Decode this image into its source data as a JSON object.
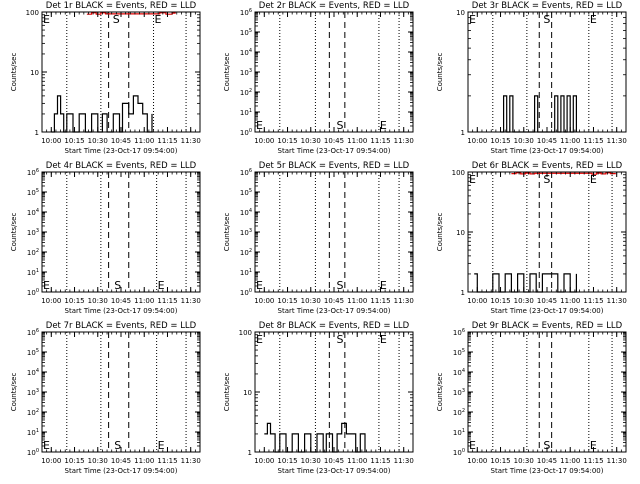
{
  "figure": {
    "x_axis_label": "Start Time (23-Oct-17 09:54:00)",
    "y_axis_label": "Counts/sec",
    "x_tick_labels": [
      "10:00",
      "10:15",
      "10:30",
      "10:45",
      "11:00",
      "11:15",
      "11:30"
    ]
  },
  "colors": {
    "events": "#000000",
    "lld": "#e00000",
    "axes": "#000000",
    "background": "#ffffff"
  },
  "chart_data": [
    {
      "type": "line",
      "title": "Det 1r BLACK = Events, RED = LLD",
      "xlabel": "Start Time (23-Oct-17 09:54:00)",
      "ylabel": "Counts/sec",
      "xlim": [
        "09:54",
        "11:36"
      ],
      "y_scale": "log",
      "ylim": [
        1,
        100
      ],
      "y_tick_labels": [
        "1",
        "10",
        "100"
      ],
      "markers": [
        {
          "label": "E",
          "time": "09:54"
        },
        {
          "label": "S",
          "time": "10:39"
        },
        {
          "label": "E",
          "time": "11:06"
        }
      ],
      "dashed_lines": [
        "10:37",
        "10:50"
      ],
      "dotted_lines": [
        "10:10",
        "10:32",
        "11:06",
        "11:27"
      ],
      "series": [
        {
          "color": "#000000",
          "x": [
            "10:00",
            "10:02",
            "10:04",
            "10:06",
            "10:08",
            "10:10",
            "10:14",
            "10:18",
            "10:22",
            "10:26",
            "10:30",
            "10:33",
            "10:36",
            "10:40",
            "10:44",
            "10:46",
            "10:50",
            "10:53",
            "10:56",
            "10:59",
            "11:02",
            "11:05"
          ],
          "y": [
            1,
            2,
            4,
            2,
            1,
            2,
            1,
            2,
            1,
            2,
            1,
            2,
            1,
            2,
            1,
            3,
            2,
            4,
            3,
            2,
            1,
            2
          ]
        },
        {
          "color": "#e00000",
          "x": [
            "10:23",
            "10:26",
            "10:29",
            "10:32",
            "10:35",
            "11:06",
            "11:10",
            "11:14",
            "11:18",
            "11:20"
          ],
          "y": [
            92,
            97,
            92,
            97,
            93,
            93,
            97,
            92,
            96,
            94
          ]
        }
      ]
    },
    {
      "type": "line",
      "title": "Det 2r BLACK = Events, RED = LLD",
      "xlabel": "Start Time (23-Oct-17 09:54:00)",
      "ylabel": "Counts/sec",
      "xlim": [
        "09:54",
        "11:36"
      ],
      "y_scale": "log",
      "ylim": [
        1,
        1000000
      ],
      "y_tick_labels": [
        "10^0",
        "10^1",
        "10^2",
        "10^3",
        "10^4",
        "10^5",
        "10^6"
      ],
      "markers": [
        {
          "label": "E",
          "time": "09:54"
        },
        {
          "label": "S",
          "time": "10:46"
        },
        {
          "label": "E",
          "time": "11:14"
        }
      ],
      "dashed_lines": [
        "10:42",
        "10:52"
      ],
      "dotted_lines": [
        "10:10",
        "10:33",
        "11:14",
        "11:27"
      ],
      "series": []
    },
    {
      "type": "line",
      "title": "Det 3r BLACK = Events, RED = LLD",
      "xlabel": "Start Time (23-Oct-17 09:54:00)",
      "ylabel": "Counts/sec",
      "xlim": [
        "09:54",
        "11:36"
      ],
      "y_scale": "log",
      "ylim": [
        1,
        10
      ],
      "y_tick_labels": [
        "1",
        "10"
      ],
      "markers": [
        {
          "label": "E",
          "time": "09:54"
        },
        {
          "label": "S",
          "time": "10:42"
        },
        {
          "label": "E",
          "time": "11:12"
        }
      ],
      "dashed_lines": [
        "10:40",
        "10:48"
      ],
      "dotted_lines": [
        "10:10",
        "10:32",
        "11:12",
        "11:27"
      ],
      "series": [
        {
          "color": "#000000",
          "x": [
            "10:15",
            "10:17",
            "10:19",
            "10:21",
            "10:23",
            "10:35",
            "10:37",
            "10:39",
            "10:50",
            "10:52",
            "10:54",
            "10:56",
            "10:58",
            "11:00",
            "11:02",
            "11:04"
          ],
          "y": [
            1,
            2,
            1,
            2,
            1,
            1,
            2,
            1,
            2,
            1,
            2,
            1,
            2,
            1,
            2,
            1
          ]
        }
      ]
    },
    {
      "type": "line",
      "title": "Det 4r BLACK = Events, RED = LLD",
      "xlabel": "Start Time (23-Oct-17 09:54:00)",
      "ylabel": "Counts/sec",
      "xlim": [
        "09:54",
        "11:36"
      ],
      "y_scale": "log",
      "ylim": [
        1,
        1000000
      ],
      "y_tick_labels": [
        "10^0",
        "10^1",
        "10^2",
        "10^3",
        "10^4",
        "10^5",
        "10^6"
      ],
      "markers": [
        {
          "label": "E",
          "time": "09:54"
        },
        {
          "label": "S",
          "time": "10:40"
        },
        {
          "label": "E",
          "time": "11:08"
        }
      ],
      "dashed_lines": [
        "10:37",
        "10:50"
      ],
      "dotted_lines": [
        "10:10",
        "10:32",
        "11:08",
        "11:27"
      ],
      "series": []
    },
    {
      "type": "line",
      "title": "Det 5r BLACK = Events, RED = LLD",
      "xlabel": "Start Time (23-Oct-17 09:54:00)",
      "ylabel": "Counts/sec",
      "xlim": [
        "09:54",
        "11:36"
      ],
      "y_scale": "log",
      "ylim": [
        1,
        1000000
      ],
      "y_tick_labels": [
        "10^0",
        "10^1",
        "10^2",
        "10^3",
        "10^4",
        "10^5",
        "10^6"
      ],
      "markers": [
        {
          "label": "E",
          "time": "09:54"
        },
        {
          "label": "S",
          "time": "10:46"
        },
        {
          "label": "E",
          "time": "11:14"
        }
      ],
      "dashed_lines": [
        "10:42",
        "10:52"
      ],
      "dotted_lines": [
        "10:10",
        "10:33",
        "11:14",
        "11:27"
      ],
      "series": []
    },
    {
      "type": "line",
      "title": "Det 6r BLACK = Events, RED = LLD",
      "xlabel": "Start Time (23-Oct-17 09:54:00)",
      "ylabel": "Counts/sec",
      "xlim": [
        "09:54",
        "11:36"
      ],
      "y_scale": "log",
      "ylim": [
        1,
        100
      ],
      "y_tick_labels": [
        "1",
        "10",
        "100"
      ],
      "markers": [
        {
          "label": "E",
          "time": "09:54"
        },
        {
          "label": "S",
          "time": "10:42"
        },
        {
          "label": "E",
          "time": "11:12"
        }
      ],
      "dashed_lines": [
        "10:40",
        "10:48"
      ],
      "dotted_lines": [
        "10:10",
        "10:32",
        "11:12",
        "11:27"
      ],
      "series": [
        {
          "color": "#000000",
          "x": [
            "09:58",
            "10:00",
            "10:06",
            "10:10",
            "10:14",
            "10:18",
            "10:22",
            "10:26",
            "10:30",
            "10:34",
            "10:38",
            "10:42",
            "10:48",
            "10:52",
            "10:56",
            "11:00",
            "11:04"
          ],
          "y": [
            2,
            1,
            1,
            2,
            1,
            2,
            1,
            2,
            1,
            2,
            1,
            2,
            2,
            1,
            2,
            1,
            2
          ]
        },
        {
          "color": "#e00000",
          "x": [
            "10:22",
            "10:25",
            "10:28",
            "10:31",
            "10:34",
            "10:37",
            "11:14",
            "11:17",
            "11:20",
            "11:23",
            "11:26",
            "11:29"
          ],
          "y": [
            94,
            97,
            93,
            96,
            93,
            95,
            92,
            96,
            93,
            97,
            94,
            92
          ]
        }
      ]
    },
    {
      "type": "line",
      "title": "Det 7r BLACK = Events, RED = LLD",
      "xlabel": "Start Time (23-Oct-17 09:54:00)",
      "ylabel": "Counts/sec",
      "xlim": [
        "09:54",
        "11:36"
      ],
      "y_scale": "log",
      "ylim": [
        1,
        1000000
      ],
      "y_tick_labels": [
        "10^0",
        "10^1",
        "10^2",
        "10^3",
        "10^4",
        "10^5",
        "10^6"
      ],
      "markers": [
        {
          "label": "E",
          "time": "09:54"
        },
        {
          "label": "S",
          "time": "10:40"
        },
        {
          "label": "E",
          "time": "11:08"
        }
      ],
      "dashed_lines": [
        "10:37",
        "10:50"
      ],
      "dotted_lines": [
        "10:10",
        "10:32",
        "11:08",
        "11:27"
      ],
      "series": []
    },
    {
      "type": "line",
      "title": "Det 8r BLACK = Events, RED = LLD",
      "xlabel": "Start Time (23-Oct-17 09:54:00)",
      "ylabel": "Counts/sec",
      "xlim": [
        "09:54",
        "11:36"
      ],
      "y_scale": "log",
      "ylim": [
        1,
        100
      ],
      "y_tick_labels": [
        "1",
        "10",
        "100"
      ],
      "markers": [
        {
          "label": "E",
          "time": "09:54"
        },
        {
          "label": "S",
          "time": "10:46"
        },
        {
          "label": "E",
          "time": "11:14"
        }
      ],
      "dashed_lines": [
        "10:42",
        "10:52"
      ],
      "dotted_lines": [
        "10:10",
        "10:33",
        "11:14",
        "11:27"
      ],
      "series": [
        {
          "color": "#000000",
          "x": [
            "10:00",
            "10:02",
            "10:04",
            "10:07",
            "10:10",
            "10:14",
            "10:18",
            "10:22",
            "10:26",
            "10:30",
            "10:34",
            "10:38",
            "10:40",
            "10:44",
            "10:47",
            "10:50",
            "10:53",
            "10:56",
            "10:59",
            "11:02",
            "11:05"
          ],
          "y": [
            2,
            3,
            2,
            1,
            2,
            1,
            2,
            1,
            2,
            1,
            2,
            1,
            2,
            1,
            2,
            3,
            2,
            2,
            1,
            2,
            1
          ]
        }
      ]
    },
    {
      "type": "line",
      "title": "Det 9r BLACK = Events, RED = LLD",
      "xlabel": "Start Time (23-Oct-17 09:54:00)",
      "ylabel": "Counts/sec",
      "xlim": [
        "09:54",
        "11:36"
      ],
      "y_scale": "log",
      "ylim": [
        1,
        1000000
      ],
      "y_tick_labels": [
        "10^0",
        "10^1",
        "10^2",
        "10^3",
        "10^4",
        "10^5",
        "10^6"
      ],
      "markers": [
        {
          "label": "E",
          "time": "09:54"
        },
        {
          "label": "S",
          "time": "10:42"
        },
        {
          "label": "E",
          "time": "11:12"
        }
      ],
      "dashed_lines": [
        "10:40",
        "10:48"
      ],
      "dotted_lines": [
        "10:10",
        "10:32",
        "11:12",
        "11:27"
      ],
      "series": []
    }
  ]
}
